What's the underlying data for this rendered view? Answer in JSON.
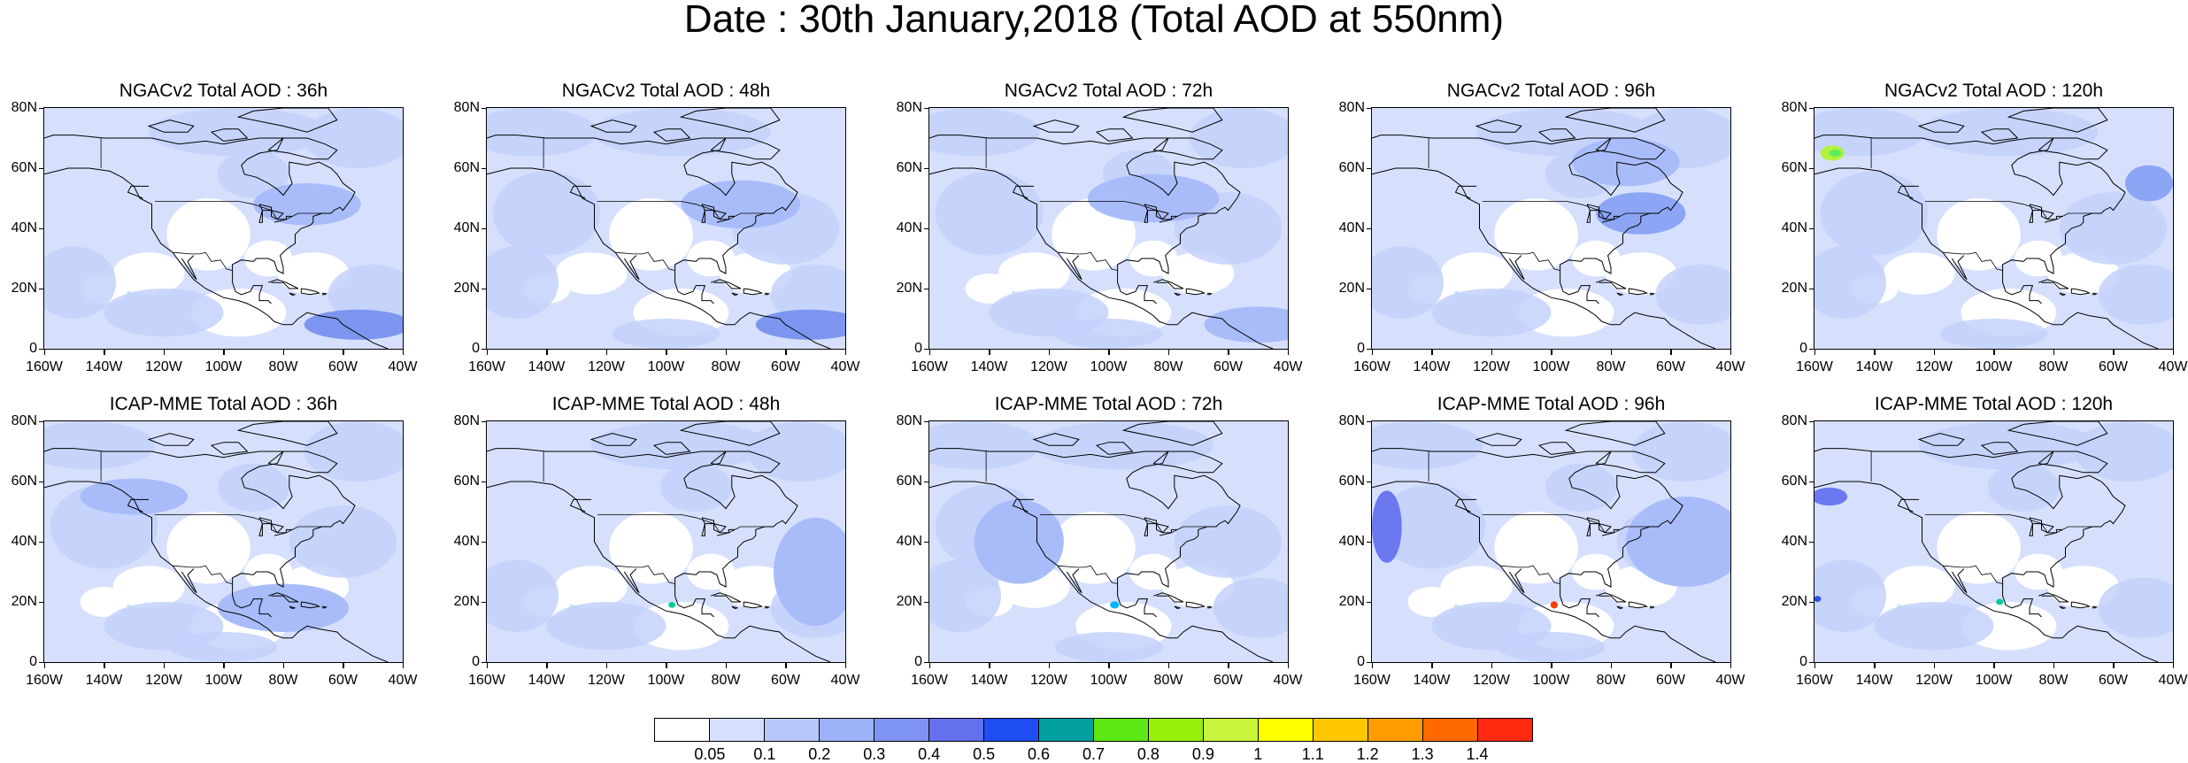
{
  "title": "Date : 30th January,2018 (Total AOD at 550nm)",
  "panels": [
    {
      "title": "NGACv2 Total AOD : 36h",
      "model": "NGACv2",
      "lead": "36h",
      "features": [
        [
          "#7c96f0",
          -55,
          8,
          18,
          5
        ],
        [
          "#a9bcfa",
          -72,
          48,
          18,
          7
        ]
      ]
    },
    {
      "title": "NGACv2 Total AOD : 48h",
      "model": "NGACv2",
      "lead": "48h",
      "features": [
        [
          "#7c96f0",
          -52,
          8,
          18,
          5
        ],
        [
          "#a9bcfa",
          -75,
          48,
          20,
          8
        ]
      ]
    },
    {
      "title": "NGACv2 Total AOD : 72h",
      "model": "NGACv2",
      "lead": "72h",
      "features": [
        [
          "#a9bcfa",
          -50,
          8,
          18,
          6
        ],
        [
          "#a9bcfa",
          -85,
          50,
          22,
          8
        ]
      ]
    },
    {
      "title": "NGACv2 Total AOD : 96h",
      "model": "NGACv2",
      "lead": "96h",
      "features": [
        [
          "#8ca5f5",
          -70,
          45,
          15,
          7
        ],
        [
          "#a9bcfa",
          -75,
          62,
          18,
          8
        ]
      ]
    },
    {
      "title": "NGACv2 Total AOD : 120h",
      "model": "NGACv2",
      "lead": "120h",
      "features": [
        [
          "#b4f03c",
          -154,
          65,
          4,
          2.5
        ],
        [
          "#5cf05c",
          -153,
          65,
          2,
          1.2
        ],
        [
          "#8ca5f5",
          -48,
          55,
          8,
          6
        ]
      ]
    },
    {
      "title": "ICAP-MME Total AOD : 36h",
      "model": "ICAP-MME",
      "lead": "36h",
      "features": [
        [
          "#a9bcfa",
          -80,
          18,
          22,
          8
        ],
        [
          "#a9bcfa",
          -130,
          55,
          18,
          6
        ]
      ]
    },
    {
      "title": "ICAP-MME Total AOD : 48h",
      "model": "ICAP-MME",
      "lead": "48h",
      "features": [
        [
          "#00cc99",
          -98,
          19,
          1.2,
          1
        ],
        [
          "#a9bcfa",
          -50,
          30,
          14,
          18
        ]
      ]
    },
    {
      "title": "ICAP-MME Total AOD : 72h",
      "model": "ICAP-MME",
      "lead": "72h",
      "features": [
        [
          "#00b4ff",
          -98,
          19,
          1.5,
          1.2
        ],
        [
          "#a9bcfa",
          -130,
          40,
          15,
          14
        ]
      ]
    },
    {
      "title": "ICAP-MME Total AOD : 96h",
      "model": "ICAP-MME",
      "lead": "96h",
      "features": [
        [
          "#6c78f0",
          -155,
          45,
          5,
          12
        ],
        [
          "#ff3d00",
          -99,
          19,
          1.2,
          1.2
        ],
        [
          "#a9bcfa",
          -55,
          40,
          20,
          15
        ]
      ]
    },
    {
      "title": "ICAP-MME Total AOD : 120h",
      "model": "ICAP-MME",
      "lead": "120h",
      "features": [
        [
          "#6c78f0",
          -155,
          55,
          6,
          3
        ],
        [
          "#2a4fe6",
          -159,
          21,
          1.2,
          1
        ],
        [
          "#00cc99",
          -98,
          20,
          1.2,
          1
        ]
      ]
    }
  ],
  "axes": {
    "lon_range": [
      -160,
      -40
    ],
    "lat_range": [
      0,
      80
    ],
    "x_ticks": [
      "160W",
      "140W",
      "120W",
      "100W",
      "80W",
      "60W",
      "40W"
    ],
    "y_ticks": [
      "0",
      "20N",
      "40N",
      "60N",
      "80N"
    ]
  },
  "colorbar": {
    "labels": [
      "0.05",
      "0.1",
      "0.2",
      "0.3",
      "0.4",
      "0.5",
      "0.6",
      "0.7",
      "0.8",
      "0.9",
      "1",
      "1.1",
      "1.2",
      "1.3",
      "1.4"
    ],
    "colors": [
      "#ffffff",
      "#d6e0fd",
      "#b7c7fb",
      "#9cb1f8",
      "#7f92f6",
      "#6470ee",
      "#1f4ef5",
      "#02a0a0",
      "#5be814",
      "#96f00a",
      "#c8f53c",
      "#ffff00",
      "#ffc800",
      "#ff9d00",
      "#ff6a00",
      "#ff2a10"
    ]
  }
}
